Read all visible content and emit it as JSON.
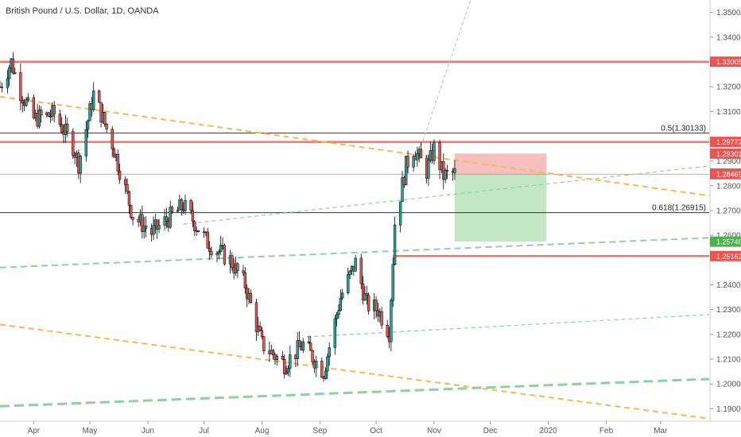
{
  "chart_data": {
    "type": "candlestick",
    "title": "British Pound / U.S. Dollar, 1D, OANDA",
    "ylim": [
      1.185,
      1.355
    ],
    "y_ticks": [
      {
        "value": 1.19,
        "label": "1.19000"
      },
      {
        "value": 1.2,
        "label": "1.20000"
      },
      {
        "value": 1.21,
        "label": "1.21000"
      },
      {
        "value": 1.22,
        "label": "1.22000"
      },
      {
        "value": 1.23,
        "label": "1.23000"
      },
      {
        "value": 1.24,
        "label": "1.24000"
      },
      {
        "value": 1.26,
        "label": "1.26000"
      },
      {
        "value": 1.27,
        "label": "1.27000"
      },
      {
        "value": 1.28,
        "label": "1.28000"
      },
      {
        "value": 1.29,
        "label": "1.29000"
      },
      {
        "value": 1.31,
        "label": "1.31000"
      },
      {
        "value": 1.32,
        "label": "1.32000"
      },
      {
        "value": 1.34,
        "label": "1.34000"
      },
      {
        "value": 1.35,
        "label": "1.35000"
      }
    ],
    "x_ticks": [
      {
        "date": "2019-04-01",
        "label": "Apr"
      },
      {
        "date": "2019-05-01",
        "label": "May"
      },
      {
        "date": "2019-06-01",
        "label": "Jun"
      },
      {
        "date": "2019-07-01",
        "label": "Jul"
      },
      {
        "date": "2019-08-01",
        "label": "Aug"
      },
      {
        "date": "2019-09-01",
        "label": "Sep"
      },
      {
        "date": "2019-10-01",
        "label": "Oct"
      },
      {
        "date": "2019-11-01",
        "label": "Nov"
      },
      {
        "date": "2019-12-01",
        "label": "Dec"
      },
      {
        "date": "2020-01-01",
        "label": "2020"
      },
      {
        "date": "2020-02-01",
        "label": "Feb"
      },
      {
        "date": "2020-03-01",
        "label": "Mar"
      }
    ],
    "x_range": [
      "2019-03-14",
      "2020-03-27"
    ],
    "close_path": [
      [
        "2019-03-14",
        1.32
      ],
      [
        "2019-03-20",
        1.33
      ],
      [
        "2019-03-25",
        1.318
      ],
      [
        "2019-04-01",
        1.307
      ],
      [
        "2019-04-12",
        1.309
      ],
      [
        "2019-04-22",
        1.296
      ],
      [
        "2019-04-25",
        1.289
      ],
      [
        "2019-05-03",
        1.317
      ],
      [
        "2019-05-13",
        1.297
      ],
      [
        "2019-05-24",
        1.268
      ],
      [
        "2019-06-03",
        1.261
      ],
      [
        "2019-06-20",
        1.272
      ],
      [
        "2019-07-03",
        1.257
      ],
      [
        "2019-07-15",
        1.25
      ],
      [
        "2019-07-23",
        1.24
      ],
      [
        "2019-08-01",
        1.216
      ],
      [
        "2019-08-13",
        1.208
      ],
      [
        "2019-08-23",
        1.216
      ],
      [
        "2019-09-03",
        1.205
      ],
      [
        "2019-09-12",
        1.235
      ],
      [
        "2019-09-20",
        1.249
      ],
      [
        "2019-09-26",
        1.232
      ],
      [
        "2019-10-02",
        1.23
      ],
      [
        "2019-10-08",
        1.221
      ],
      [
        "2019-10-11",
        1.265
      ],
      [
        "2019-10-17",
        1.288
      ],
      [
        "2019-10-21",
        1.295
      ],
      [
        "2019-10-28",
        1.286
      ],
      [
        "2019-11-01",
        1.295
      ],
      [
        "2019-11-06",
        1.284
      ],
      [
        "2019-11-12",
        1.285
      ]
    ],
    "horizontal_levels": [
      {
        "value": 1.33008,
        "label": "1.33008",
        "style": "resistance"
      },
      {
        "value": 1.29772,
        "label": "1.29772",
        "style": "resistance"
      },
      {
        "value": 1.25162,
        "label": "1.25162",
        "style": "resistance"
      }
    ],
    "fib_levels": [
      {
        "value": 1.30133,
        "label": "0.5(1.30133)"
      },
      {
        "value": 1.26915,
        "label": "0.618(1.26915)"
      }
    ],
    "price_badges": [
      {
        "value": 1.29772,
        "label": "1.29772",
        "color": "#ef5350"
      },
      {
        "value": 1.29301,
        "label": "1.29301",
        "color": "#ef5350"
      },
      {
        "value": 1.28486,
        "label": "1.28486",
        "color": "#555555"
      },
      {
        "value": 1.28469,
        "label": "1.28469",
        "color": "#ef5350"
      },
      {
        "value": 1.25746,
        "label": "1.25746",
        "color": "#4caf50"
      },
      {
        "value": 1.25162,
        "label": "1.25162",
        "color": "#ef5350"
      },
      {
        "value": 1.33008,
        "label": "1.33008",
        "color": "#ef5350"
      }
    ],
    "position": {
      "type": "short",
      "start": "2019-11-12",
      "end": "2019-12-31",
      "entry": 1.28469,
      "stop": 1.29301,
      "target": 1.25746
    },
    "trendlines": [
      {
        "from": [
          "2019-03-14",
          1.316
        ],
        "to": [
          "2020-03-27",
          1.276
        ],
        "style": "orange-dashed"
      },
      {
        "from": [
          "2019-03-14",
          1.224
        ],
        "to": [
          "2020-03-27",
          1.186
        ],
        "style": "orange-dashed"
      },
      {
        "from": [
          "2019-03-14",
          1.247
        ],
        "to": [
          "2020-03-27",
          1.259
        ],
        "style": "green-dashed"
      },
      {
        "from": [
          "2019-03-14",
          1.191
        ],
        "to": [
          "2020-03-27",
          1.202
        ],
        "style": "green-dashed-thick"
      },
      {
        "from": [
          "2019-06-20",
          1.2645
        ],
        "to": [
          "2020-03-27",
          1.288
        ],
        "style": "green-dotted"
      },
      {
        "from": [
          "2019-08-25",
          1.219
        ],
        "to": [
          "2020-03-27",
          1.228
        ],
        "style": "green-dotted"
      },
      {
        "from": [
          "2019-10-25",
          1.296
        ],
        "to": [
          "2019-11-30",
          1.376
        ],
        "style": "gray-dotted"
      }
    ],
    "colors": {
      "bull": "#26a69a",
      "bear": "#ef5350",
      "candle_outline": "#000000",
      "resistance": "#ef5350",
      "orange_trend": "#f9b84c",
      "green_trend": "#8fd19e",
      "profit_zone": "#b9e3b8",
      "loss_zone": "#f5b5b5"
    }
  }
}
